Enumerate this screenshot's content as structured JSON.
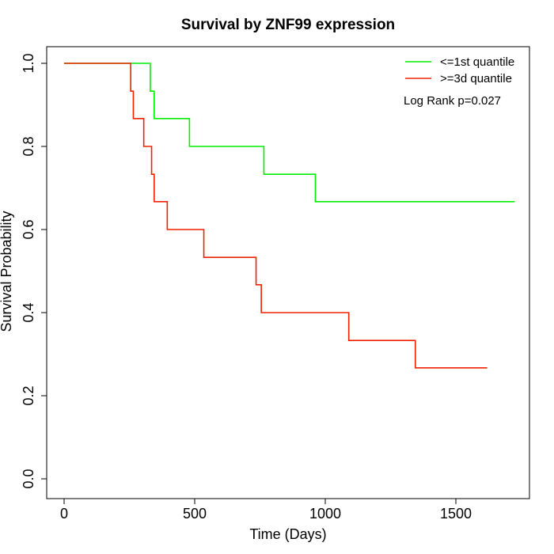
{
  "chart_data": {
    "type": "line",
    "step": true,
    "title": "Survival by ZNF99 expression",
    "xlabel": "Time (Days)",
    "ylabel": "Survival Probability",
    "xlim": [
      0,
      1750
    ],
    "ylim": [
      0,
      1.0
    ],
    "x_ticks": [
      0,
      500,
      1000,
      1500
    ],
    "x_tick_labels": [
      "0",
      "500",
      "1000",
      "1500"
    ],
    "y_ticks": [
      0.0,
      0.2,
      0.4,
      0.6,
      0.8,
      1.0
    ],
    "y_tick_labels": [
      "0.0",
      "0.2",
      "0.4",
      "0.6",
      "0.8",
      "1.0"
    ],
    "grid": false,
    "legend_position": "top-right",
    "annotation": "Log Rank p=0.027",
    "series": [
      {
        "name": "<=1st quantile",
        "color": "#00ee00",
        "x": [
          0,
          330,
          345,
          480,
          765,
          962,
          1725
        ],
        "y": [
          1.0,
          0.933,
          0.867,
          0.8,
          0.733,
          0.667,
          0.667
        ]
      },
      {
        "name": ">=3d quantile",
        "color": "#ee2200",
        "x": [
          0,
          255,
          265,
          305,
          335,
          345,
          395,
          535,
          735,
          755,
          1090,
          1345,
          1620
        ],
        "y": [
          1.0,
          0.933,
          0.867,
          0.8,
          0.733,
          0.667,
          0.6,
          0.533,
          0.467,
          0.4,
          0.333,
          0.267,
          0.267
        ]
      }
    ]
  }
}
